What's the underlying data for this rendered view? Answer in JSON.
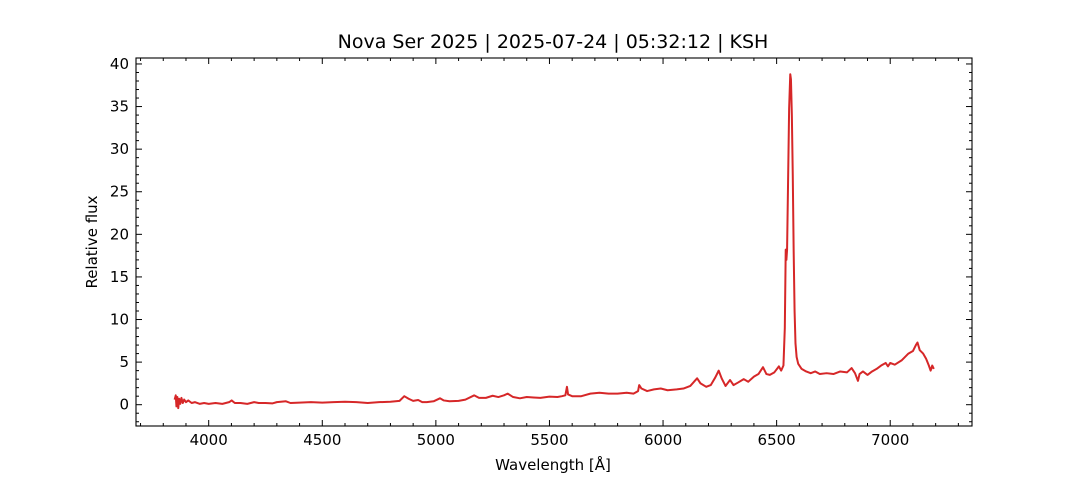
{
  "chart_data": {
    "type": "line",
    "title": "Nova Ser 2025 | 2025-07-24 | 05:32:12 | KSH",
    "xlabel": "Wavelength [Å]",
    "ylabel": "Relative flux",
    "xlim": [
      3680,
      7360
    ],
    "ylim": [
      -2.5,
      40.7
    ],
    "xticks": [
      4000,
      4500,
      5000,
      5500,
      6000,
      6500,
      7000
    ],
    "yticks": [
      0,
      5,
      10,
      15,
      20,
      25,
      30,
      35,
      40
    ],
    "grid": false,
    "series": [
      {
        "color": "#d62728",
        "points": [
          [
            3850,
            0.6
          ],
          [
            3855,
            1.1
          ],
          [
            3858,
            -0.2
          ],
          [
            3862,
            0.9
          ],
          [
            3866,
            -0.4
          ],
          [
            3870,
            0.7
          ],
          [
            3875,
            0.1
          ],
          [
            3880,
            0.8
          ],
          [
            3886,
            0.2
          ],
          [
            3892,
            0.6
          ],
          [
            3900,
            0.3
          ],
          [
            3910,
            0.5
          ],
          [
            3925,
            0.2
          ],
          [
            3940,
            0.3
          ],
          [
            3960,
            0.1
          ],
          [
            3980,
            0.2
          ],
          [
            4000,
            0.1
          ],
          [
            4030,
            0.2
          ],
          [
            4060,
            0.1
          ],
          [
            4090,
            0.3
          ],
          [
            4101,
            0.5
          ],
          [
            4115,
            0.2
          ],
          [
            4140,
            0.2
          ],
          [
            4170,
            0.1
          ],
          [
            4200,
            0.3
          ],
          [
            4220,
            0.2
          ],
          [
            4250,
            0.2
          ],
          [
            4280,
            0.15
          ],
          [
            4300,
            0.3
          ],
          [
            4340,
            0.4
          ],
          [
            4360,
            0.2
          ],
          [
            4400,
            0.25
          ],
          [
            4450,
            0.3
          ],
          [
            4500,
            0.25
          ],
          [
            4550,
            0.3
          ],
          [
            4600,
            0.35
          ],
          [
            4650,
            0.3
          ],
          [
            4700,
            0.2
          ],
          [
            4750,
            0.3
          ],
          [
            4800,
            0.35
          ],
          [
            4840,
            0.45
          ],
          [
            4861,
            1.0
          ],
          [
            4880,
            0.7
          ],
          [
            4900,
            0.45
          ],
          [
            4922,
            0.55
          ],
          [
            4940,
            0.3
          ],
          [
            4960,
            0.3
          ],
          [
            4990,
            0.4
          ],
          [
            5018,
            0.75
          ],
          [
            5035,
            0.5
          ],
          [
            5060,
            0.4
          ],
          [
            5100,
            0.45
          ],
          [
            5130,
            0.6
          ],
          [
            5169,
            1.1
          ],
          [
            5190,
            0.8
          ],
          [
            5220,
            0.8
          ],
          [
            5250,
            1.05
          ],
          [
            5275,
            0.9
          ],
          [
            5300,
            1.1
          ],
          [
            5316,
            1.3
          ],
          [
            5340,
            0.9
          ],
          [
            5370,
            0.75
          ],
          [
            5400,
            0.9
          ],
          [
            5430,
            0.85
          ],
          [
            5460,
            0.8
          ],
          [
            5500,
            0.95
          ],
          [
            5535,
            0.9
          ],
          [
            5555,
            1.0
          ],
          [
            5570,
            1.1
          ],
          [
            5577,
            2.1
          ],
          [
            5582,
            1.2
          ],
          [
            5600,
            1.0
          ],
          [
            5640,
            1.0
          ],
          [
            5680,
            1.3
          ],
          [
            5720,
            1.4
          ],
          [
            5760,
            1.3
          ],
          [
            5800,
            1.3
          ],
          [
            5840,
            1.4
          ],
          [
            5870,
            1.3
          ],
          [
            5890,
            1.6
          ],
          [
            5895,
            2.3
          ],
          [
            5905,
            1.9
          ],
          [
            5930,
            1.6
          ],
          [
            5960,
            1.8
          ],
          [
            5990,
            1.9
          ],
          [
            6020,
            1.7
          ],
          [
            6060,
            1.8
          ],
          [
            6090,
            1.9
          ],
          [
            6120,
            2.2
          ],
          [
            6140,
            2.8
          ],
          [
            6150,
            3.1
          ],
          [
            6165,
            2.5
          ],
          [
            6190,
            2.1
          ],
          [
            6210,
            2.3
          ],
          [
            6230,
            3.2
          ],
          [
            6245,
            4.0
          ],
          [
            6258,
            3.1
          ],
          [
            6275,
            2.2
          ],
          [
            6295,
            2.9
          ],
          [
            6310,
            2.3
          ],
          [
            6330,
            2.6
          ],
          [
            6355,
            3.0
          ],
          [
            6375,
            2.7
          ],
          [
            6400,
            3.3
          ],
          [
            6420,
            3.6
          ],
          [
            6440,
            4.4
          ],
          [
            6455,
            3.6
          ],
          [
            6470,
            3.5
          ],
          [
            6490,
            3.8
          ],
          [
            6510,
            4.5
          ],
          [
            6520,
            4.0
          ],
          [
            6530,
            4.6
          ],
          [
            6536,
            9.0
          ],
          [
            6540,
            18.2
          ],
          [
            6543,
            17.0
          ],
          [
            6546,
            18.2
          ],
          [
            6550,
            25.5
          ],
          [
            6555,
            34.8
          ],
          [
            6560,
            38.8
          ],
          [
            6563,
            38.2
          ],
          [
            6567,
            34.0
          ],
          [
            6571,
            27.0
          ],
          [
            6575,
            18.0
          ],
          [
            6579,
            11.0
          ],
          [
            6583,
            7.2
          ],
          [
            6588,
            5.6
          ],
          [
            6595,
            4.8
          ],
          [
            6610,
            4.2
          ],
          [
            6630,
            3.9
          ],
          [
            6650,
            3.7
          ],
          [
            6670,
            3.9
          ],
          [
            6690,
            3.6
          ],
          [
            6720,
            3.7
          ],
          [
            6750,
            3.6
          ],
          [
            6780,
            3.9
          ],
          [
            6810,
            3.8
          ],
          [
            6830,
            4.3
          ],
          [
            6845,
            3.7
          ],
          [
            6858,
            2.8
          ],
          [
            6865,
            3.6
          ],
          [
            6880,
            3.9
          ],
          [
            6900,
            3.5
          ],
          [
            6920,
            3.9
          ],
          [
            6940,
            4.2
          ],
          [
            6960,
            4.6
          ],
          [
            6980,
            4.9
          ],
          [
            6990,
            4.5
          ],
          [
            7000,
            4.9
          ],
          [
            7020,
            4.7
          ],
          [
            7050,
            5.2
          ],
          [
            7080,
            6.0
          ],
          [
            7100,
            6.3
          ],
          [
            7113,
            7.0
          ],
          [
            7120,
            7.3
          ],
          [
            7130,
            6.4
          ],
          [
            7145,
            6.0
          ],
          [
            7158,
            5.4
          ],
          [
            7170,
            4.6
          ],
          [
            7178,
            4.0
          ],
          [
            7185,
            4.6
          ],
          [
            7192,
            4.2
          ]
        ]
      }
    ]
  }
}
